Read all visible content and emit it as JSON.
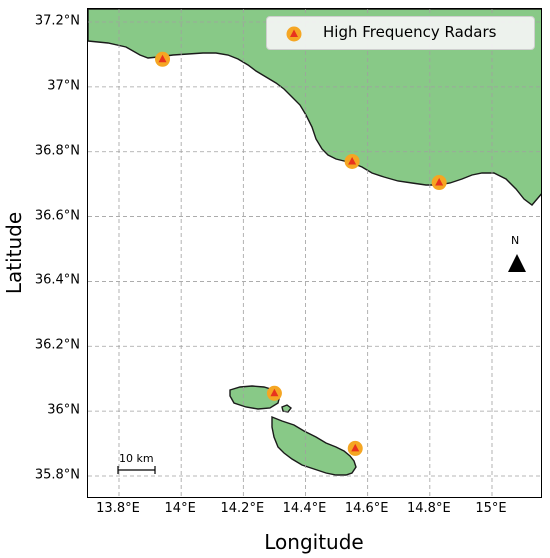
{
  "map": {
    "xaxis": {
      "title": "Longitude",
      "ticks": [
        {
          "value": 13.8,
          "label": "13.8°E"
        },
        {
          "value": 14.0,
          "label": "14°E"
        },
        {
          "value": 14.2,
          "label": "14.2°E"
        },
        {
          "value": 14.4,
          "label": "14.4°E"
        },
        {
          "value": 14.6,
          "label": "14.6°E"
        },
        {
          "value": 14.8,
          "label": "14.8°E"
        },
        {
          "value": 15.0,
          "label": "15°E"
        }
      ]
    },
    "yaxis": {
      "title": "Latitude",
      "ticks": [
        {
          "value": 35.8,
          "label": "35.8°N"
        },
        {
          "value": 36.0,
          "label": "36°N"
        },
        {
          "value": 36.2,
          "label": "36.2°N"
        },
        {
          "value": 36.4,
          "label": "36.4°N"
        },
        {
          "value": 36.6,
          "label": "36.6°N"
        },
        {
          "value": 36.8,
          "label": "36.8°N"
        },
        {
          "value": 37.0,
          "label": "37°N"
        },
        {
          "value": 37.2,
          "label": "37.2°N"
        }
      ]
    },
    "legend": {
      "label": "High Frequency Radars",
      "placement": "top-right"
    },
    "radars": [
      {
        "lon": 13.94,
        "lat": 37.085
      },
      {
        "lon": 14.55,
        "lat": 36.77
      },
      {
        "lon": 14.83,
        "lat": 36.705
      },
      {
        "lon": 14.3,
        "lat": 36.055
      },
      {
        "lon": 14.56,
        "lat": 35.885
      }
    ],
    "north_arrow_label": "N",
    "scale_bar_label": "10 km",
    "colors": {
      "land": "#88c987",
      "coast": "#1a1a1a",
      "marker_outer": "#f5a623",
      "marker_inner": "#e8321e",
      "grid": "#a0a0a0"
    }
  }
}
